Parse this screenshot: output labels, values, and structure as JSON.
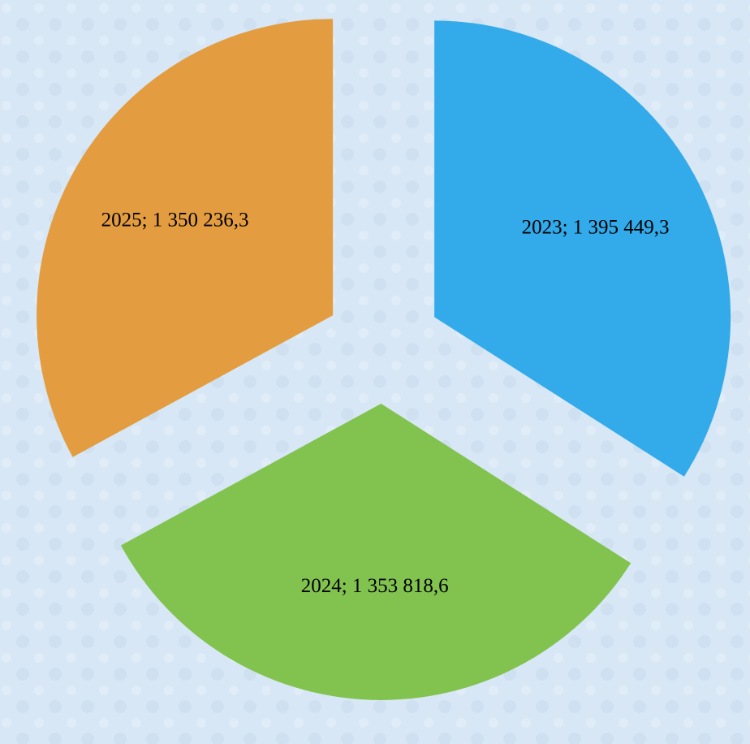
{
  "chart_data": {
    "type": "pie",
    "categories": [
      "2023",
      "2024",
      "2025"
    ],
    "values": [
      1395449.3,
      1353818.6,
      1350236.3
    ],
    "value_labels": [
      "1 395 449,3",
      "1 353 818,6",
      "1 350 236,3"
    ],
    "colors": [
      "#33aaea",
      "#82c350",
      "#e39d40"
    ],
    "exploded": true
  }
}
